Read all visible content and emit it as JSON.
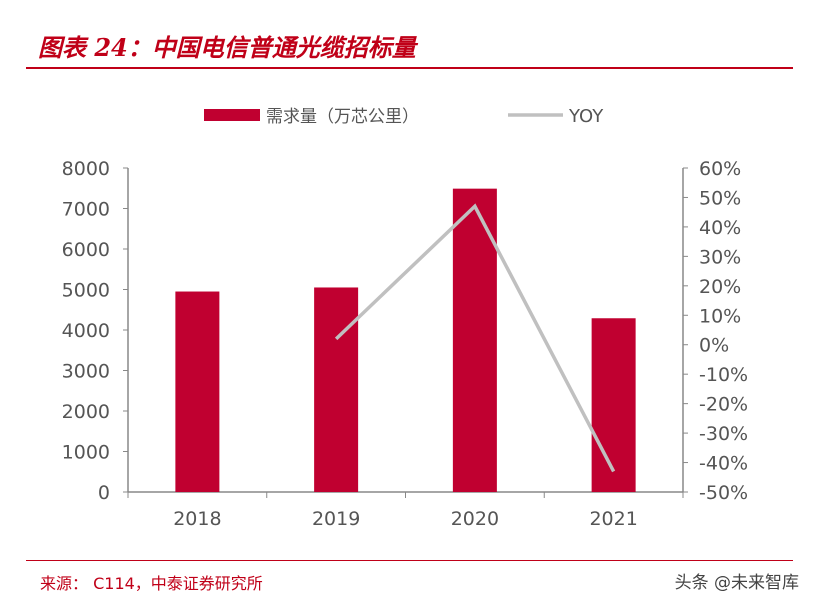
{
  "title": "图表 24：中国电信普通光缆招标量",
  "source": "来源： C114，中泰证券研究所",
  "watermark": "头条 @未来智库",
  "chart_data": {
    "type": "bar+line",
    "categories": [
      "2018",
      "2019",
      "2020",
      "2021"
    ],
    "series": [
      {
        "name": "需求量（万芯公里）",
        "type": "bar",
        "axis": "left",
        "color": "#c00030",
        "values": [
          4950,
          5050,
          7490,
          4290
        ]
      },
      {
        "name": "YOY",
        "type": "line",
        "axis": "right",
        "color": "#c0c0c0",
        "values": [
          null,
          2,
          47,
          -43
        ]
      }
    ],
    "left_axis": {
      "ylim": [
        0,
        8000
      ],
      "ticks": [
        "0",
        "1000",
        "2000",
        "3000",
        "4000",
        "5000",
        "6000",
        "7000",
        "8000"
      ]
    },
    "right_axis": {
      "ylim": [
        -50,
        60
      ],
      "unit": "%",
      "ticks": [
        "-50%",
        "-40%",
        "-30%",
        "-20%",
        "-10%",
        "0%",
        "10%",
        "20%",
        "30%",
        "40%",
        "50%",
        "60%"
      ]
    },
    "legend": "top",
    "grid": false
  }
}
